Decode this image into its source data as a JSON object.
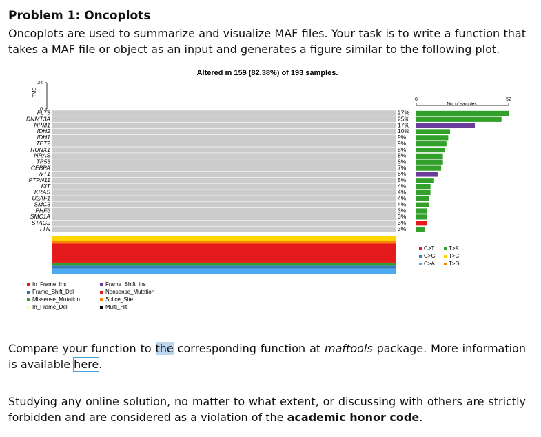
{
  "heading": "Problem 1: Oncoplots",
  "intro": "Oncoplots are used to summarize and visualize MAF files. Your task is to write a function that takes a MAF file or object as an input and generates a figure similar to the following plot.",
  "chart_data": {
    "type": "oncoplot",
    "title": "Altered in 159 (82.38%) of 193 samples.",
    "y_label": "TMB",
    "ylim": [
      0,
      34
    ],
    "yticks": [
      0,
      34
    ],
    "genes": [
      "FLT3",
      "DNMT3A",
      "NPM1",
      "IDH2",
      "IDH1",
      "TET2",
      "RUNX1",
      "NRAS",
      "TP53",
      "CEBPA",
      "WT1",
      "PTPN11",
      "KIT",
      "KRAS",
      "U2AF1",
      "SMC3",
      "PHF6",
      "SMC1A",
      "STAG2",
      "TTN"
    ],
    "values": [
      27,
      25,
      17,
      10,
      9,
      9,
      8,
      8,
      8,
      7,
      6,
      5,
      4,
      4,
      4,
      4,
      3,
      3,
      3,
      3
    ],
    "value_labels": [
      "27%",
      "25%",
      "17%",
      "10%",
      "9%",
      "9%",
      "8%",
      "8%",
      "8%",
      "7%",
      "6%",
      "5%",
      "4%",
      "4%",
      "4%",
      "4%",
      "3%",
      "3%",
      "3%",
      "3%"
    ],
    "x_label": "No. of samples",
    "xlim": [
      0,
      52
    ],
    "xticks": [
      0,
      52
    ],
    "sample_counts": [
      52,
      48,
      33,
      19,
      18,
      17,
      16,
      15,
      15,
      14,
      12,
      10,
      8,
      8,
      7,
      7,
      6,
      6,
      6,
      5
    ],
    "bar_colors": [
      "#33a02c",
      "#33a02c",
      "#6a3d9a",
      "#33a02c",
      "#33a02c",
      "#33a02c",
      "#33a02c",
      "#33a02c",
      "#33a02c",
      "#33a02c",
      "#6a3d9a",
      "#33a02c",
      "#33a02c",
      "#33a02c",
      "#33a02c",
      "#33a02c",
      "#33a02c",
      "#33a02c",
      "#e31a1c",
      "#33a02c"
    ],
    "variant_legend": [
      {
        "name": "In_Frame_Ins",
        "color": "#e31a1c"
      },
      {
        "name": "Frame_Shift_Del",
        "color": "#1f78b4"
      },
      {
        "name": "Missense_Mutation",
        "color": "#33a02c"
      },
      {
        "name": "In_Frame_Del",
        "color": "#ffff99"
      },
      {
        "name": "Frame_Shift_Ins",
        "color": "#6a3d9a"
      },
      {
        "name": "Nonsense_Mutation",
        "color": "#e31a1c"
      },
      {
        "name": "Splice_Site",
        "color": "#ff7f00"
      },
      {
        "name": "Multi_Hit",
        "color": "#000000"
      }
    ],
    "titv": [
      {
        "name": "C>T",
        "color": "#e41a1c",
        "value": 50
      },
      {
        "name": "C>G",
        "color": "#377eb8",
        "value": 8
      },
      {
        "name": "C>A",
        "color": "#4daaf0",
        "value": 15
      },
      {
        "name": "T>A",
        "color": "#33a02c",
        "value": 8
      },
      {
        "name": "T>C",
        "color": "#ffd700",
        "value": 12
      },
      {
        "name": "T>G",
        "color": "#ff7f00",
        "value": 7
      }
    ]
  },
  "compare": {
    "p1": "Compare your function to ",
    "p2": "the",
    "p3": " corresponding function at ",
    "p4": "maftools",
    "p5": " package.  More information is available ",
    "p6": "here",
    "p7": "."
  },
  "warning": {
    "p1": "Studying any online solution, no matter to what extent, or discussing with others are strictly forbidden and are considered as a violation of the ",
    "p2": "academic honor code",
    "p3": "."
  }
}
